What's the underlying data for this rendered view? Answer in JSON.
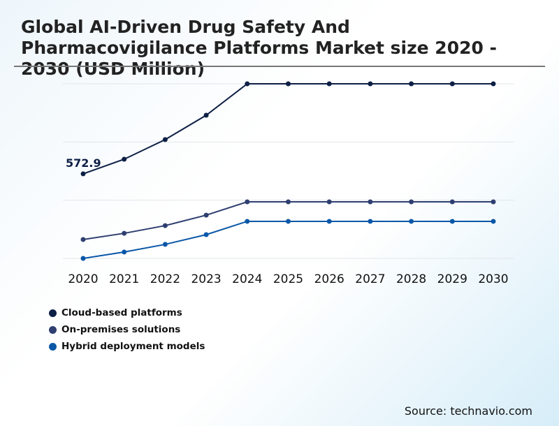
{
  "title": "Global AI-Driven Drug Safety And Pharmacovigilance Platforms Market size 2020 - 2030 (USD Million)",
  "source": "Source: technavio.com",
  "chart_data": {
    "type": "line",
    "title": "Global AI-Driven Drug Safety And Pharmacovigilance Platforms Market size 2020 - 2030 (USD Million)",
    "xlabel": "",
    "ylabel": "",
    "categories": [
      "2020",
      "2021",
      "2022",
      "2023",
      "2024",
      "2025",
      "2026",
      "2027",
      "2028",
      "2029",
      "2030"
    ],
    "ylim": [
      0,
      1183
    ],
    "grid": true,
    "legend_position": "bottom-left",
    "series": [
      {
        "name": "Cloud-based platforms",
        "color": "#0d1f45",
        "values": [
          572.9,
          672,
          805,
          970,
          1183,
          1183,
          1183,
          1183,
          1183,
          1183,
          1183
        ]
      },
      {
        "name": "On-premises solutions",
        "color": "#2e3f70",
        "values": [
          128,
          170,
          222,
          293,
          383,
          383,
          383,
          383,
          383,
          383,
          383
        ]
      },
      {
        "name": "Hybrid deployment models",
        "color": "#0a57a8",
        "values": [
          0,
          43,
          95,
          161,
          251,
          251,
          251,
          251,
          251,
          251,
          251
        ]
      }
    ],
    "annotations": [
      {
        "series": 0,
        "x": "2020",
        "label": "572.9"
      }
    ]
  }
}
